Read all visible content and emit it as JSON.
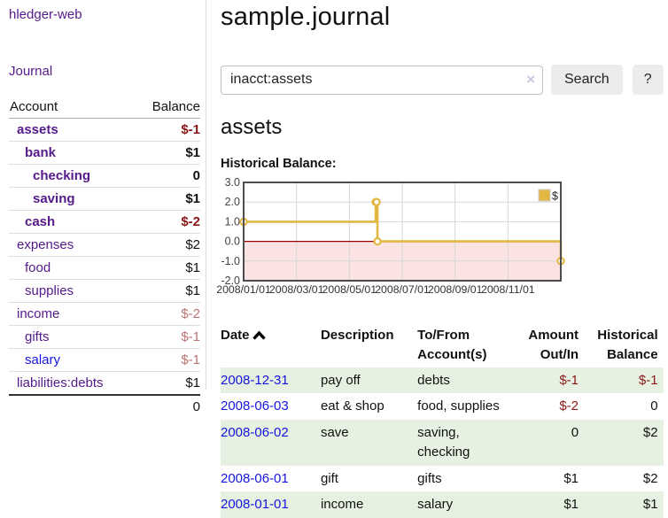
{
  "app": {
    "title": "hledger-web"
  },
  "sidebar": {
    "nav_journal": "Journal",
    "table": {
      "headers": [
        "Account",
        "Balance"
      ],
      "rows": [
        {
          "account": "assets",
          "indent": 0,
          "bold": true,
          "balance": "$-1",
          "balance_style": "neg-strong"
        },
        {
          "account": "bank",
          "indent": 1,
          "bold": true,
          "balance": "$1",
          "balance_style": "pos"
        },
        {
          "account": "checking",
          "indent": 2,
          "bold": true,
          "balance": "0",
          "balance_style": "pos"
        },
        {
          "account": "saving",
          "indent": 2,
          "bold": true,
          "balance": "$1",
          "balance_style": "pos"
        },
        {
          "account": "cash",
          "indent": 1,
          "bold": true,
          "balance": "$-2",
          "balance_style": "neg-strong"
        },
        {
          "account": "expenses",
          "indent": 0,
          "bold": false,
          "balance": "$2",
          "balance_style": "pos"
        },
        {
          "account": "food",
          "indent": 1,
          "bold": false,
          "balance": "$1",
          "balance_style": "pos"
        },
        {
          "account": "supplies",
          "indent": 1,
          "bold": false,
          "balance": "$1",
          "balance_style": "pos"
        },
        {
          "account": "income",
          "indent": 0,
          "bold": false,
          "balance": "$-2",
          "balance_style": "neg-soft"
        },
        {
          "account": "gifts",
          "indent": 1,
          "bold": false,
          "balance": "$-1",
          "balance_style": "neg-soft"
        },
        {
          "account": "salary",
          "indent": 1,
          "bold": false,
          "balance": "$-1",
          "balance_style": "neg-soft",
          "link_style": "unvisited"
        },
        {
          "account": "liabilities:debts",
          "indent": 0,
          "bold": false,
          "balance": "$1",
          "balance_style": "pos"
        }
      ],
      "total": "0"
    }
  },
  "header": {
    "title": "sample.journal"
  },
  "search": {
    "value": "inacct:assets",
    "clear_icon": "×",
    "button": "Search",
    "help_button": "?"
  },
  "account_page": {
    "title": "assets",
    "chart_label": "Historical Balance:"
  },
  "chart_data": {
    "type": "line",
    "step": true,
    "title": "Historical Balance:",
    "xlabel": "",
    "ylabel": "",
    "xrange": [
      "2008-01-01",
      "2008-12-31"
    ],
    "ylim": [
      -2,
      3
    ],
    "yticks": [
      "3.0",
      "2.0",
      "1.0",
      "0.0",
      "-1.0",
      "-2.0"
    ],
    "xticks": [
      "2008/01/01",
      "2008/03/01",
      "2008/05/01",
      "2008/07/01",
      "2008/09/01",
      "2008/11/01"
    ],
    "grid": true,
    "legend_position": "top-right",
    "series": [
      {
        "name": "$",
        "color": "#e2b843",
        "points": [
          {
            "date": "2008-01-01",
            "value": 1
          },
          {
            "date": "2008-06-01",
            "value": 2
          },
          {
            "date": "2008-06-02",
            "value": 2
          },
          {
            "date": "2008-06-03",
            "value": 0
          },
          {
            "date": "2008-12-31",
            "value": -1
          }
        ]
      }
    ],
    "colors": {
      "negative_fill": "#fbe3e3",
      "zero_line": "#990000",
      "grid": "#d6d6d6",
      "border": "#4d4d4d"
    }
  },
  "register": {
    "headers": [
      "Date",
      "Description",
      "To/From Account(s)",
      "Amount Out/In",
      "Historical Balance"
    ],
    "rows": [
      {
        "date": "2008-12-31",
        "description": "pay off",
        "accounts": "debts",
        "amount": "$-1",
        "amount_neg": true,
        "balance": "$-1",
        "balance_neg": true
      },
      {
        "date": "2008-06-03",
        "description": "eat & shop",
        "accounts": "food, supplies",
        "amount": "$-2",
        "amount_neg": true,
        "balance": "0",
        "balance_neg": false
      },
      {
        "date": "2008-06-02",
        "description": "save",
        "accounts": "saving, checking",
        "amount": "0",
        "amount_neg": false,
        "balance": "$2",
        "balance_neg": false
      },
      {
        "date": "2008-06-01",
        "description": "gift",
        "accounts": "gifts",
        "amount": "$1",
        "amount_neg": false,
        "balance": "$2",
        "balance_neg": false
      },
      {
        "date": "2008-01-01",
        "description": "income",
        "accounts": "salary",
        "amount": "$1",
        "amount_neg": false,
        "balance": "$1",
        "balance_neg": false
      }
    ]
  }
}
